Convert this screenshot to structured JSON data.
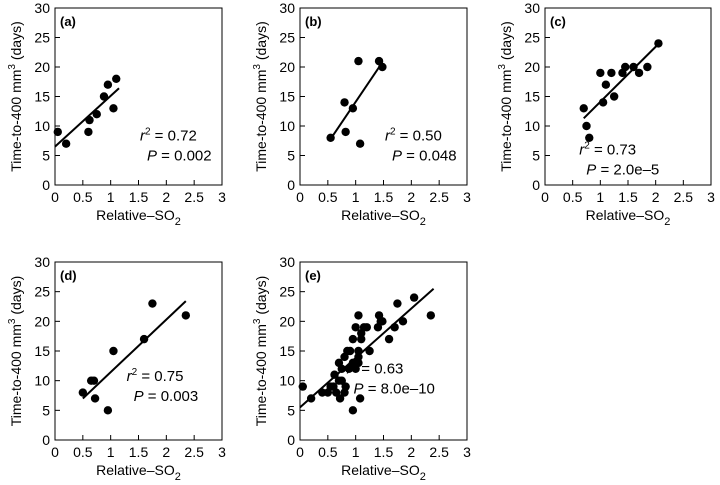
{
  "figure": {
    "y_label_main": "Time-to-400 mm",
    "y_label_sup": "3",
    "y_label_end": " (days)",
    "x_label_main": "Relative–SO",
    "x_label_sub": "2",
    "r2_label": "r",
    "r2_sup": "2",
    "p_label": "P"
  },
  "chart_data": [
    {
      "type": "scatter",
      "panel": "(a)",
      "xlim": [
        0,
        3
      ],
      "ylim": [
        0,
        30
      ],
      "xticks": [
        0,
        0.5,
        1,
        1.5,
        2,
        2.5,
        3
      ],
      "yticks": [
        0,
        5,
        10,
        15,
        20,
        25,
        30
      ],
      "points": [
        [
          0.05,
          9
        ],
        [
          0.2,
          7
        ],
        [
          0.6,
          9
        ],
        [
          0.62,
          11
        ],
        [
          0.75,
          12
        ],
        [
          0.88,
          15
        ],
        [
          0.95,
          17
        ],
        [
          1.05,
          13
        ],
        [
          1.1,
          18
        ]
      ],
      "fit_line": [
        [
          0,
          6.5
        ],
        [
          1.15,
          16.4
        ]
      ],
      "r2": "= 0.72",
      "p": "= 0.002"
    },
    {
      "type": "scatter",
      "panel": "(b)",
      "xlim": [
        0,
        3
      ],
      "ylim": [
        0,
        30
      ],
      "xticks": [
        0,
        0.5,
        1,
        1.5,
        2,
        2.5,
        3
      ],
      "yticks": [
        0,
        5,
        10,
        15,
        20,
        25,
        30
      ],
      "points": [
        [
          0.55,
          8
        ],
        [
          0.8,
          14
        ],
        [
          0.82,
          9
        ],
        [
          0.95,
          13
        ],
        [
          1.05,
          21
        ],
        [
          1.08,
          7
        ],
        [
          1.42,
          21
        ],
        [
          1.48,
          20
        ]
      ],
      "fit_line": [
        [
          0.55,
          7.8
        ],
        [
          1.48,
          20.8
        ]
      ],
      "r2": "= 0.50",
      "p": "= 0.048"
    },
    {
      "type": "scatter",
      "panel": "(c)",
      "xlim": [
        0,
        3
      ],
      "ylim": [
        0,
        30
      ],
      "xticks": [
        0,
        0.5,
        1,
        1.5,
        2,
        2.5,
        3
      ],
      "yticks": [
        0,
        5,
        10,
        15,
        20,
        25,
        30
      ],
      "points": [
        [
          0.7,
          13
        ],
        [
          0.75,
          10
        ],
        [
          0.8,
          8
        ],
        [
          1.0,
          19
        ],
        [
          1.05,
          14
        ],
        [
          1.1,
          17
        ],
        [
          1.2,
          19
        ],
        [
          1.25,
          15
        ],
        [
          1.4,
          19
        ],
        [
          1.45,
          20
        ],
        [
          1.6,
          20
        ],
        [
          1.7,
          19
        ],
        [
          1.85,
          20
        ],
        [
          2.05,
          24
        ]
      ],
      "fit_line": [
        [
          0.7,
          11.3
        ],
        [
          2.05,
          23.9
        ]
      ],
      "r2": "= 0.73",
      "p": "= 2.0e–5"
    },
    {
      "type": "scatter",
      "panel": "(d)",
      "xlim": [
        0,
        3
      ],
      "ylim": [
        0,
        30
      ],
      "xticks": [
        0,
        0.5,
        1,
        1.5,
        2,
        2.5,
        3
      ],
      "yticks": [
        0,
        5,
        10,
        15,
        20,
        25,
        30
      ],
      "points": [
        [
          0.5,
          8
        ],
        [
          0.65,
          10
        ],
        [
          0.7,
          10
        ],
        [
          0.72,
          7
        ],
        [
          0.95,
          5
        ],
        [
          1.05,
          15
        ],
        [
          1.6,
          17
        ],
        [
          1.75,
          23
        ],
        [
          2.35,
          21
        ]
      ],
      "fit_line": [
        [
          0.5,
          7.0
        ],
        [
          2.35,
          23.4
        ]
      ],
      "r2": "= 0.75",
      "p": "= 0.003"
    },
    {
      "type": "scatter",
      "panel": "(e)",
      "xlim": [
        0,
        3
      ],
      "ylim": [
        0,
        30
      ],
      "xticks": [
        0,
        0.5,
        1,
        1.5,
        2,
        2.5,
        3
      ],
      "yticks": [
        0,
        5,
        10,
        15,
        20,
        25,
        30
      ],
      "points": [
        [
          0.05,
          9
        ],
        [
          0.2,
          7
        ],
        [
          0.4,
          8
        ],
        [
          0.5,
          8
        ],
        [
          0.55,
          9
        ],
        [
          0.6,
          9
        ],
        [
          0.62,
          11
        ],
        [
          0.65,
          8
        ],
        [
          0.7,
          13
        ],
        [
          0.7,
          10
        ],
        [
          0.72,
          7
        ],
        [
          0.75,
          10
        ],
        [
          0.75,
          12
        ],
        [
          0.8,
          8
        ],
        [
          0.8,
          14
        ],
        [
          0.82,
          9
        ],
        [
          0.85,
          15
        ],
        [
          0.88,
          12
        ],
        [
          0.9,
          15
        ],
        [
          0.95,
          5
        ],
        [
          0.95,
          17
        ],
        [
          0.95,
          13
        ],
        [
          1.0,
          19
        ],
        [
          1.0,
          12
        ],
        [
          1.05,
          14
        ],
        [
          1.05,
          13
        ],
        [
          1.05,
          21
        ],
        [
          1.05,
          15
        ],
        [
          1.08,
          7
        ],
        [
          1.1,
          18
        ],
        [
          1.1,
          17
        ],
        [
          1.15,
          19
        ],
        [
          1.2,
          19
        ],
        [
          1.25,
          15
        ],
        [
          1.4,
          19
        ],
        [
          1.42,
          21
        ],
        [
          1.45,
          20
        ],
        [
          1.48,
          20
        ],
        [
          1.6,
          17
        ],
        [
          1.7,
          19
        ],
        [
          1.75,
          23
        ],
        [
          1.85,
          20
        ],
        [
          2.05,
          24
        ],
        [
          2.35,
          21
        ]
      ],
      "fit_line": [
        [
          0,
          5.5
        ],
        [
          2.4,
          25.5
        ]
      ],
      "r2": "= 0.63",
      "p": "= 8.0e–10"
    }
  ]
}
